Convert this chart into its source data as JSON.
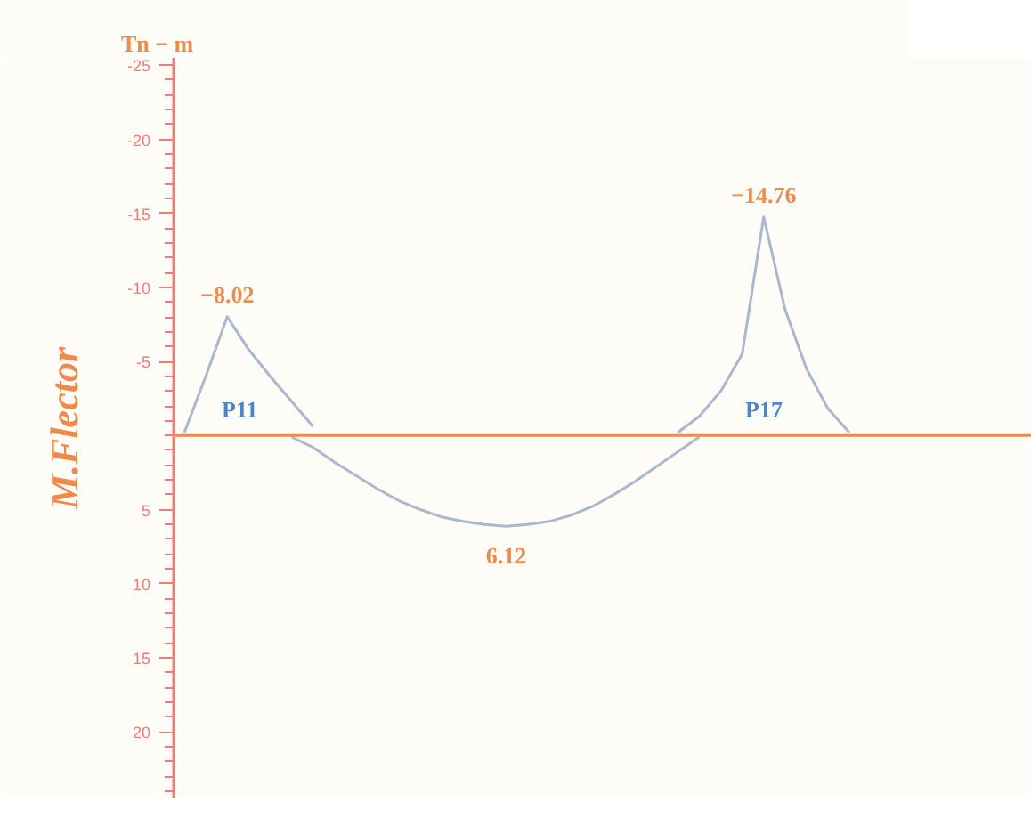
{
  "chart_data": {
    "type": "line",
    "ylabel": "M.Flector",
    "categories": [
      null,
      null,
      null,
      null,
      null,
      null,
      null,
      null,
      null,
      null,
      null,
      null,
      null,
      null,
      null,
      null,
      null,
      null,
      null,
      null,
      null,
      null,
      null,
      null,
      null,
      null,
      null,
      null,
      null,
      null,
      null,
      null,
      null,
      null,
      null,
      null,
      null,
      null,
      null,
      null
    ],
    "ylim": [
      24.5,
      -25.5
    ],
    "yticks": [
      -25,
      -20,
      -15,
      -10,
      -5,
      5,
      10,
      15,
      20
    ],
    "grid": false,
    "marker": "none",
    "line_style": "solid",
    "series": [
      {
        "color": "#a9b8cc",
        "values": [
          -0.2,
          -4,
          -8.02,
          -5.8,
          -4,
          -2.3,
          -0.6,
          null,
          null,
          null,
          null,
          null,
          null,
          null,
          null,
          null,
          null,
          null,
          null,
          null,
          null,
          null,
          null,
          null,
          null,
          null,
          null,
          null,
          null,
          null,
          null,
          null,
          null,
          null,
          null,
          null,
          null,
          null,
          null,
          null
        ],
        "value_labels": [
          null,
          null,
          "−8.02",
          null,
          null,
          null,
          null,
          null,
          null,
          null,
          null,
          null,
          null,
          null,
          null,
          null,
          null,
          null,
          null,
          null,
          null,
          null,
          null,
          null,
          null,
          null,
          null,
          null,
          null,
          null,
          null,
          null,
          null,
          null,
          null,
          null,
          null,
          null,
          null,
          null
        ]
      },
      {
        "color": "#a9b8cc",
        "values": [
          null,
          null,
          null,
          null,
          null,
          0.1,
          0.8,
          1.8,
          2.7,
          3.6,
          4.4,
          5.0,
          5.5,
          5.8,
          6.0,
          6.12,
          6.0,
          5.8,
          5.4,
          4.8,
          4.0,
          3.1,
          2.1,
          1.1,
          0.1,
          null,
          null,
          null,
          null,
          null,
          null,
          null,
          null,
          null,
          null,
          null,
          null,
          null,
          null,
          null
        ],
        "value_labels": [
          null,
          null,
          null,
          null,
          null,
          null,
          null,
          null,
          null,
          null,
          null,
          null,
          null,
          null,
          null,
          "6.12",
          null,
          null,
          null,
          null,
          null,
          null,
          null,
          null,
          null,
          null,
          null,
          null,
          null,
          null,
          null,
          null,
          null,
          null,
          null,
          null,
          null,
          null,
          null,
          null
        ]
      },
      {
        "color": "#a9b8cc",
        "values": [
          null,
          null,
          null,
          null,
          null,
          null,
          null,
          null,
          null,
          null,
          null,
          null,
          null,
          null,
          null,
          null,
          null,
          null,
          null,
          null,
          null,
          null,
          null,
          -0.2,
          -1.3,
          -3.0,
          -5.5,
          -14.76,
          -8.5,
          -4.5,
          -1.8,
          -0.2,
          null,
          null,
          null,
          null,
          null,
          null,
          null,
          null
        ],
        "value_labels": [
          null,
          null,
          null,
          null,
          null,
          null,
          null,
          null,
          null,
          null,
          null,
          null,
          null,
          null,
          null,
          null,
          null,
          null,
          null,
          null,
          null,
          null,
          null,
          null,
          null,
          null,
          null,
          "−14.76",
          null,
          null,
          null,
          null,
          null,
          null,
          null,
          null,
          null,
          null,
          null,
          null
        ]
      }
    ],
    "ref_lines": [
      {
        "axis": "y",
        "value": 0,
        "color": "#f08a4b"
      }
    ],
    "annotations": [
      "Tn − m",
      "P11",
      "P17"
    ]
  }
}
